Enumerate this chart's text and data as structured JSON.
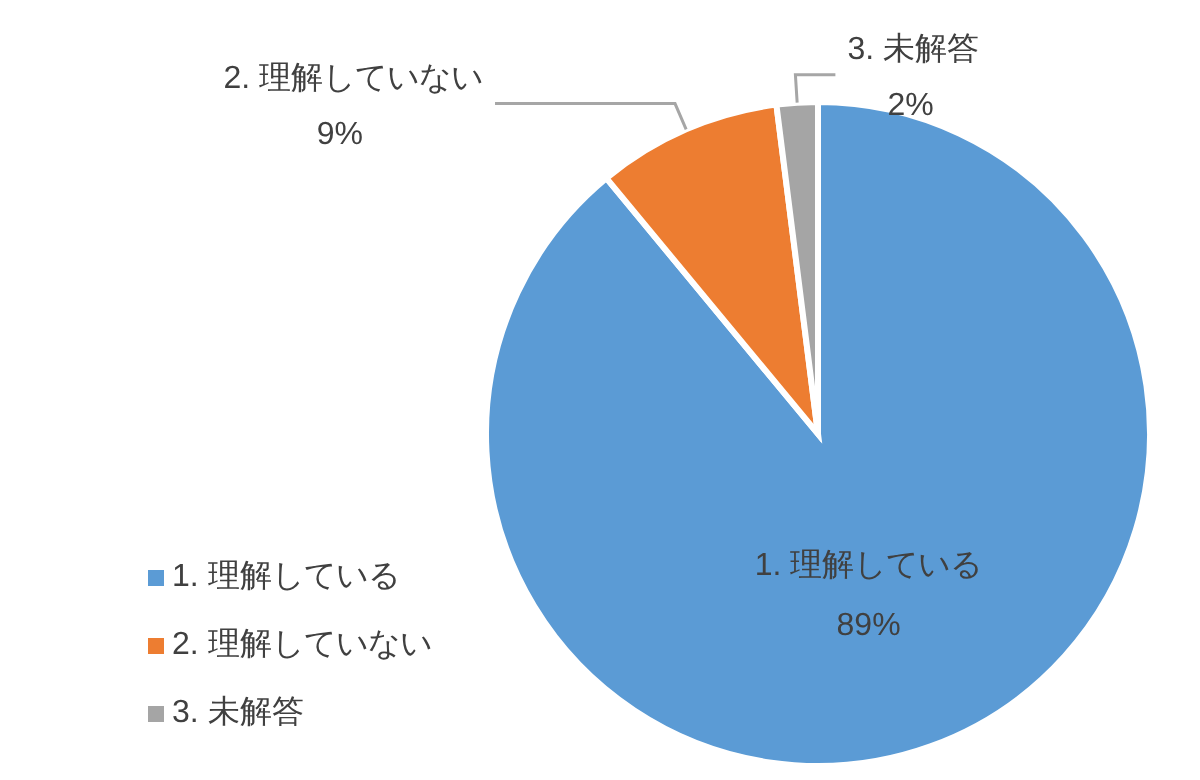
{
  "chart_data": {
    "type": "pie",
    "categories": [
      "1. 理解している",
      "2. 理解していない",
      "3. 未解答"
    ],
    "values": [
      89,
      9,
      2
    ],
    "colors": [
      "#5b9bd5",
      "#ed7d31",
      "#a5a5a5"
    ],
    "value_labels": [
      "89%",
      "9%",
      "2%"
    ],
    "legend": "bottom left"
  }
}
